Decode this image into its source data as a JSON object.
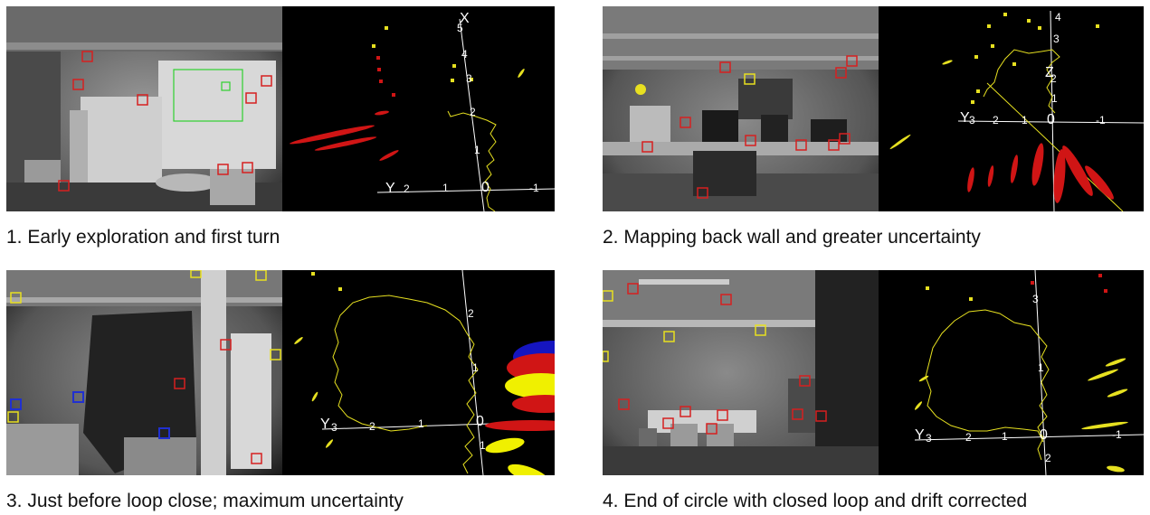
{
  "panels": [
    {
      "caption": "1. Early exploration and first turn",
      "map": {
        "x_axis_label": "X",
        "y_axis_label": "Y",
        "x_ticks": [
          "5",
          "4",
          "3",
          "2",
          "1"
        ],
        "y_ticks": [
          "2",
          "1",
          "0",
          "-1"
        ]
      }
    },
    {
      "caption": "2. Mapping back wall and greater uncertainty",
      "map": {
        "x_axis_label": "Z",
        "y_axis_label": "Y",
        "x_ticks": [
          "4",
          "3",
          "2",
          "1"
        ],
        "y_ticks": [
          "3",
          "2",
          "1",
          "0",
          "-1"
        ]
      }
    },
    {
      "caption": "3. Just before loop close; maximum uncertainty",
      "map": {
        "x_axis_label": "",
        "y_axis_label": "Y",
        "x_ticks": [
          "2",
          "1",
          "1"
        ],
        "y_ticks": [
          "3",
          "2",
          "1",
          "0"
        ]
      }
    },
    {
      "caption": "4. End of circle with closed loop and drift corrected",
      "map": {
        "x_axis_label": "",
        "y_axis_label": "Y",
        "x_ticks": [
          "3",
          "1",
          "2"
        ],
        "y_ticks": [
          "3",
          "2",
          "1",
          "0",
          "-1"
        ]
      }
    }
  ],
  "colors": {
    "feature_box": "#d62020",
    "predicted_box": "#e8e020",
    "failed_box": "#2030d0",
    "search_region": "#30d030",
    "trajectory": "#e6e020",
    "uncertainty_red": "#d01515",
    "uncertainty_yellow": "#f0f000",
    "uncertainty_blue": "#1515c0",
    "axis": "#ffffff"
  }
}
